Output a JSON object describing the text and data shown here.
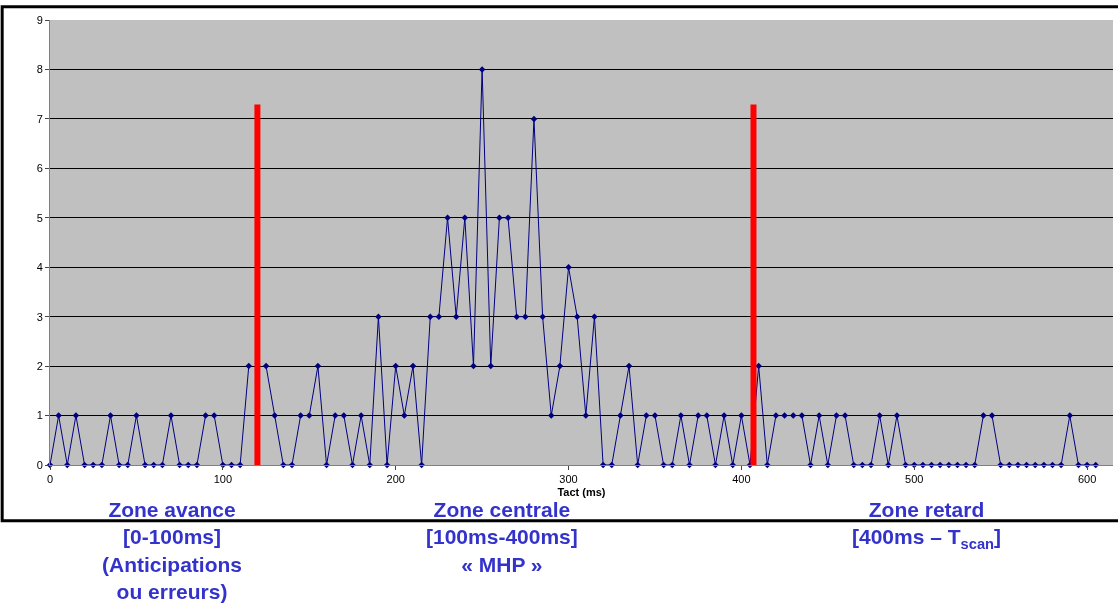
{
  "chart_data": {
    "type": "line",
    "xlabel": "Tact (ms)",
    "x": [
      0,
      5,
      10,
      15,
      20,
      25,
      30,
      35,
      40,
      45,
      50,
      55,
      60,
      65,
      70,
      75,
      80,
      85,
      90,
      95,
      100,
      105,
      110,
      115,
      120,
      125,
      130,
      135,
      140,
      145,
      150,
      155,
      160,
      165,
      170,
      175,
      180,
      185,
      190,
      195,
      200,
      205,
      210,
      215,
      220,
      225,
      230,
      235,
      240,
      245,
      250,
      255,
      260,
      265,
      270,
      275,
      280,
      285,
      290,
      295,
      300,
      305,
      310,
      315,
      320,
      325,
      330,
      335,
      340,
      345,
      350,
      355,
      360,
      365,
      370,
      375,
      380,
      385,
      390,
      395,
      400,
      405,
      410,
      415,
      420,
      425,
      430,
      435,
      440,
      445,
      450,
      455,
      460,
      465,
      470,
      475,
      480,
      485,
      490,
      495,
      500,
      505,
      510,
      515,
      520,
      525,
      530,
      535,
      540,
      545,
      550,
      555,
      560,
      565,
      570,
      575,
      580,
      585,
      590,
      595,
      600,
      605
    ],
    "series": [
      {
        "color": "#000080",
        "values": [
          0,
          1,
          0,
          1,
          0,
          0,
          0,
          1,
          0,
          0,
          1,
          0,
          0,
          0,
          1,
          0,
          0,
          0,
          1,
          1,
          0,
          0,
          0,
          2,
          null,
          2,
          1,
          0,
          0,
          1,
          1,
          2,
          0,
          1,
          1,
          0,
          1,
          0,
          3,
          0,
          2,
          1,
          2,
          0,
          3,
          3,
          5,
          3,
          5,
          2,
          8,
          2,
          5,
          5,
          3,
          3,
          7,
          3,
          1,
          2,
          4,
          3,
          1,
          3,
          0,
          0,
          1,
          2,
          0,
          1,
          1,
          0,
          0,
          1,
          0,
          1,
          1,
          0,
          1,
          0,
          1,
          0,
          2,
          0,
          1,
          1,
          1,
          1,
          0,
          1,
          0,
          1,
          1,
          0,
          0,
          0,
          1,
          0,
          1,
          0,
          0,
          0,
          0,
          0,
          0,
          0,
          0,
          0,
          1,
          1,
          0,
          0,
          0,
          0,
          0,
          0,
          0,
          0,
          1,
          0,
          0,
          0
        ]
      }
    ],
    "xlim": [
      0,
      615
    ],
    "xticks": [
      0,
      100,
      200,
      300,
      400,
      500,
      600
    ],
    "ylim": [
      0,
      9
    ],
    "yticks": [
      0,
      1,
      2,
      3,
      4,
      5,
      6,
      7,
      8,
      9
    ],
    "grid": "y",
    "marker": "diamond",
    "line_style": "solid",
    "ref_lines": [
      {
        "axis": "x",
        "value": 120,
        "color": "#ff0000"
      },
      {
        "axis": "x",
        "value": 407,
        "color": "#ff0000"
      }
    ],
    "annotations": [
      "Zone avance\n[0-100ms]\n(Anticipations\nou erreurs)",
      "Zone centrale\n[100ms-400ms]\n« MHP »",
      "Zone retard\n[400ms – T$_{scan}$]"
    ]
  }
}
